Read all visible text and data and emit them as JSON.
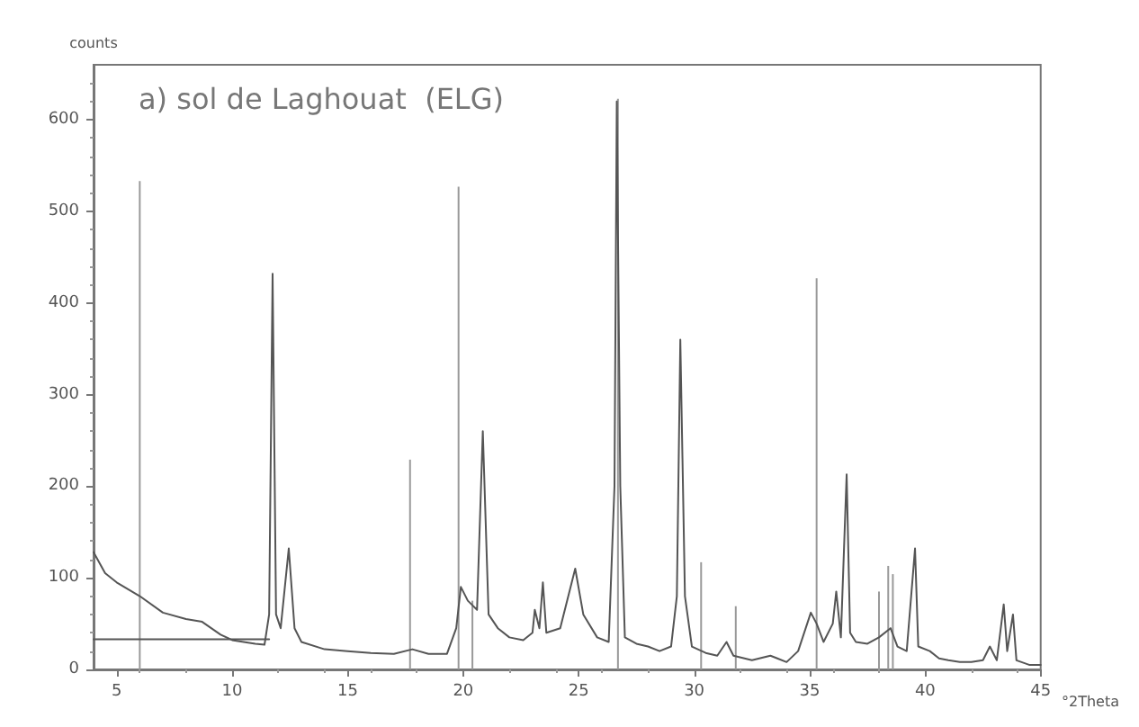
{
  "chart_data": {
    "type": "line",
    "title": "a) sol de Laghouat  (ELG)",
    "xlabel": "°2Theta",
    "ylabel": "counts",
    "xlim": [
      4,
      45
    ],
    "ylim": [
      0,
      660
    ],
    "xticks": [
      5,
      10,
      15,
      20,
      25,
      30,
      35,
      40,
      45
    ],
    "yticks": [
      0,
      100,
      200,
      300,
      400,
      500,
      600
    ],
    "grid": false,
    "marker": "none",
    "series": [
      {
        "color": "#555555",
        "line_style": "solid",
        "x": [
          4,
          4.5,
          5,
          6,
          7,
          8,
          8.7,
          9.5,
          10,
          11,
          11.4,
          11.6,
          11.75,
          11.9,
          12.1,
          12.45,
          12.7,
          13,
          14,
          15,
          16,
          17,
          17.8,
          18.5,
          19.3,
          19.7,
          19.9,
          20.2,
          20.6,
          20.85,
          21.1,
          21.5,
          22,
          22.6,
          23,
          23.1,
          23.3,
          23.45,
          23.6,
          24.2,
          24.85,
          25.2,
          25.8,
          26.3,
          26.55,
          26.65,
          26.8,
          27,
          27.5,
          28,
          28.5,
          29,
          29.25,
          29.4,
          29.6,
          29.9,
          30.5,
          31,
          31.4,
          31.7,
          32.5,
          33.3,
          33.6,
          34,
          34.5,
          35.05,
          35.3,
          35.6,
          36,
          36.15,
          36.35,
          36.6,
          36.75,
          37,
          37.5,
          38,
          38.5,
          38.8,
          39.2,
          39.56,
          39.7,
          40.2,
          40.6,
          41,
          41.5,
          42,
          42.5,
          42.8,
          43.1,
          43.4,
          43.55,
          43.8,
          43.95,
          44.5,
          45
        ],
        "values": [
          128,
          105,
          95,
          80,
          62,
          55,
          52,
          38,
          32,
          28,
          27,
          60,
          432,
          60,
          45,
          132,
          45,
          30,
          22,
          20,
          18,
          17,
          22,
          17,
          17,
          45,
          90,
          75,
          65,
          260,
          60,
          45,
          35,
          32,
          40,
          65,
          45,
          95,
          40,
          45,
          110,
          60,
          35,
          30,
          200,
          620,
          200,
          35,
          28,
          25,
          20,
          25,
          80,
          360,
          80,
          25,
          18,
          15,
          30,
          15,
          10,
          15,
          12,
          8,
          20,
          62,
          50,
          30,
          50,
          85,
          35,
          213,
          40,
          30,
          28,
          35,
          45,
          25,
          20,
          132,
          25,
          20,
          12,
          10,
          8,
          8,
          10,
          25,
          10,
          71,
          20,
          60,
          10,
          5,
          5
        ]
      },
      {
        "type": "bar",
        "color": "#999999",
        "x": [
          6,
          17.7,
          19.8,
          20.4,
          26.7,
          30.3,
          31.8,
          35.3,
          38,
          38.4,
          38.6
        ],
        "values": [
          533,
          229,
          527,
          75,
          623,
          117,
          69,
          427,
          85,
          113,
          104
        ]
      },
      {
        "color": "#555555",
        "line_style": "solid",
        "x": [
          4,
          11.6
        ],
        "values": [
          33,
          33
        ]
      }
    ]
  }
}
